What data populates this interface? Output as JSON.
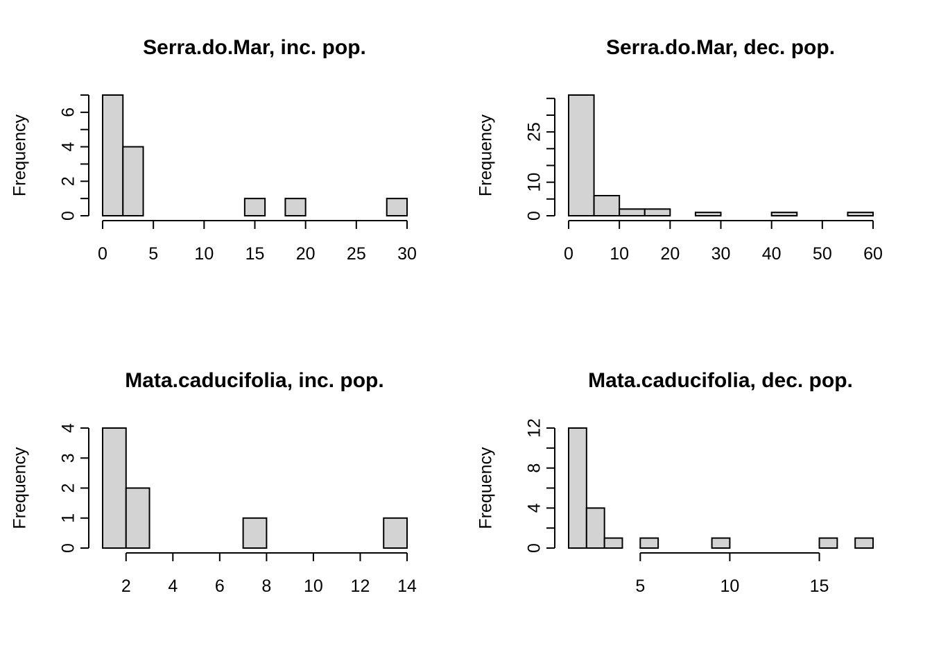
{
  "chart_data": [
    {
      "type": "bar",
      "title": "Serra.do.Mar, inc. pop.",
      "ylabel": "Frequency",
      "xlabel": "",
      "xlim": [
        0,
        30
      ],
      "ylim": [
        0,
        7
      ],
      "xticks": [
        0,
        5,
        10,
        15,
        20,
        25,
        30
      ],
      "yticks": [
        0,
        2,
        4,
        6
      ],
      "yminor": [
        1,
        3,
        5,
        7
      ],
      "bins": [
        {
          "x0": 0,
          "x1": 2,
          "count": 7
        },
        {
          "x0": 2,
          "x1": 4,
          "count": 4
        },
        {
          "x0": 14,
          "x1": 16,
          "count": 1
        },
        {
          "x0": 18,
          "x1": 20,
          "count": 1
        },
        {
          "x0": 28,
          "x1": 30,
          "count": 1
        }
      ]
    },
    {
      "type": "bar",
      "title": "Serra.do.Mar, dec. pop.",
      "ylabel": "Frequency",
      "xlabel": "",
      "xlim": [
        0,
        60
      ],
      "ylim": [
        0,
        36
      ],
      "xticks": [
        0,
        10,
        20,
        30,
        40,
        50,
        60
      ],
      "yticks": [
        0,
        10,
        25
      ],
      "yminor": [
        5,
        15,
        20,
        30,
        35
      ],
      "bins": [
        {
          "x0": 0,
          "x1": 5,
          "count": 36
        },
        {
          "x0": 5,
          "x1": 10,
          "count": 6
        },
        {
          "x0": 10,
          "x1": 15,
          "count": 2
        },
        {
          "x0": 15,
          "x1": 20,
          "count": 2
        },
        {
          "x0": 25,
          "x1": 30,
          "count": 1
        },
        {
          "x0": 40,
          "x1": 45,
          "count": 1
        },
        {
          "x0": 55,
          "x1": 60,
          "count": 1
        }
      ]
    },
    {
      "type": "bar",
      "title": "Mata.caducifolia, inc. pop.",
      "ylabel": "Frequency",
      "xlabel": "",
      "xlim": [
        1,
        14
      ],
      "ylim": [
        0,
        4
      ],
      "xticks": [
        2,
        4,
        6,
        8,
        10,
        12,
        14
      ],
      "yticks": [
        0,
        1,
        2,
        3,
        4
      ],
      "yminor": [],
      "bins": [
        {
          "x0": 1,
          "x1": 2,
          "count": 4
        },
        {
          "x0": 2,
          "x1": 3,
          "count": 2
        },
        {
          "x0": 7,
          "x1": 8,
          "count": 1
        },
        {
          "x0": 13,
          "x1": 14,
          "count": 1
        }
      ]
    },
    {
      "type": "bar",
      "title": "Mata.caducifolia, dec. pop.",
      "ylabel": "Frequency",
      "xlabel": "",
      "xlim": [
        1,
        18
      ],
      "ylim": [
        0,
        12
      ],
      "xticks": [
        5,
        10,
        15
      ],
      "yticks": [
        0,
        4,
        8,
        12
      ],
      "yminor": [
        2,
        6,
        10
      ],
      "bins": [
        {
          "x0": 1,
          "x1": 2,
          "count": 12
        },
        {
          "x0": 2,
          "x1": 3,
          "count": 4
        },
        {
          "x0": 3,
          "x1": 4,
          "count": 1
        },
        {
          "x0": 5,
          "x1": 6,
          "count": 1
        },
        {
          "x0": 9,
          "x1": 10,
          "count": 1
        },
        {
          "x0": 15,
          "x1": 16,
          "count": 1
        },
        {
          "x0": 17,
          "x1": 18,
          "count": 1
        }
      ]
    }
  ]
}
